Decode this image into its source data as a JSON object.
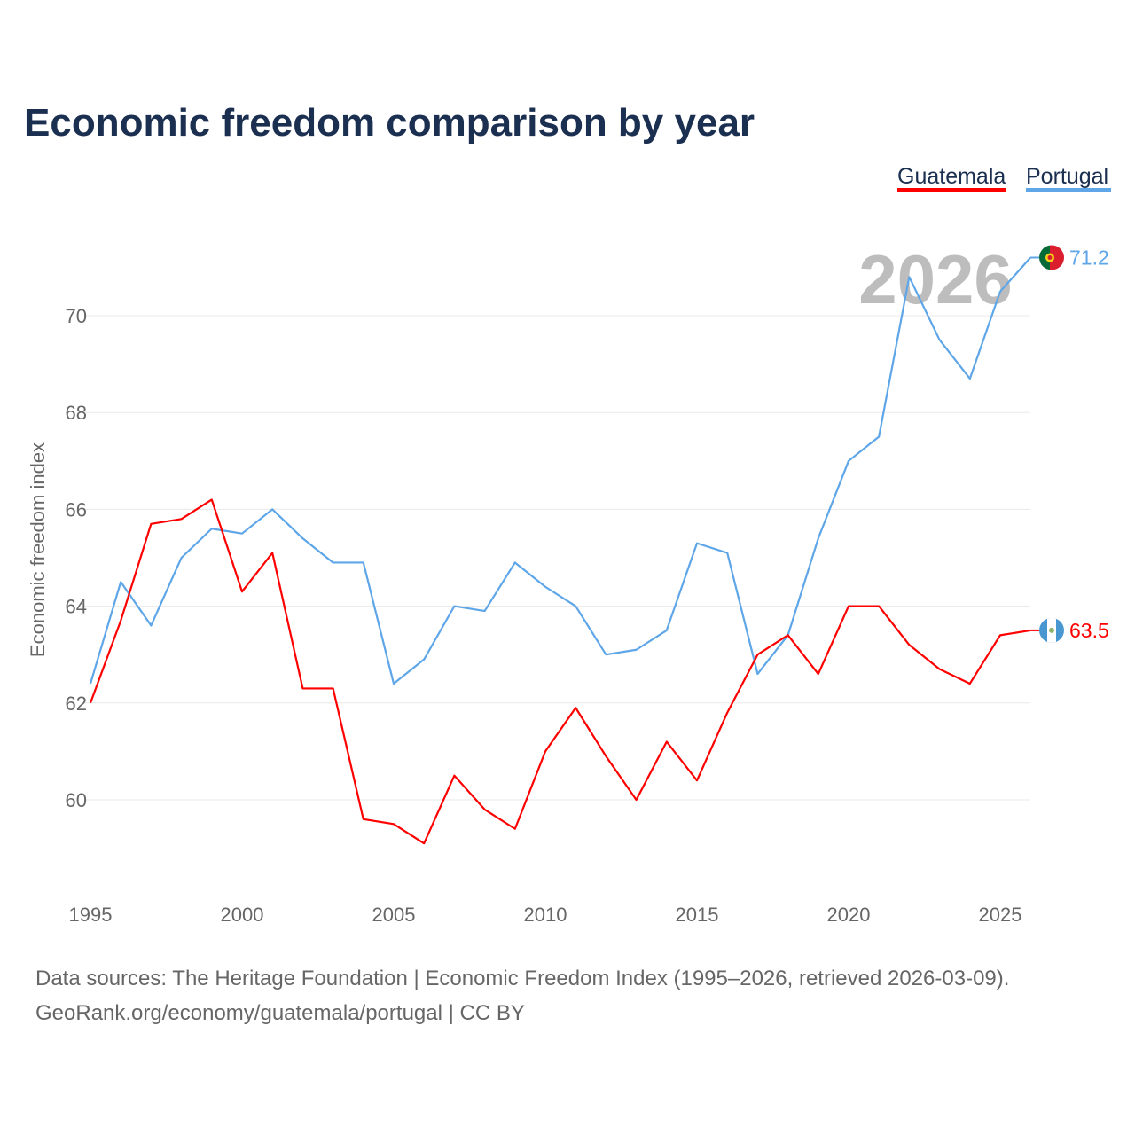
{
  "chart_data": {
    "type": "line",
    "title": "Economic freedom comparison by year",
    "xlabel": "",
    "ylabel": "Economic freedom index",
    "xlim": [
      1995,
      2026
    ],
    "ylim": [
      58,
      72
    ],
    "x_ticks": [
      "1995",
      "2000",
      "2005",
      "2010",
      "2015",
      "2020",
      "2025"
    ],
    "y_ticks": [
      "60",
      "62",
      "64",
      "66",
      "68",
      "70"
    ],
    "grid": true,
    "legend_placement": "top-right",
    "current_year_label": "2026",
    "x": [
      1995,
      1996,
      1997,
      1998,
      1999,
      2000,
      2001,
      2002,
      2003,
      2004,
      2005,
      2006,
      2007,
      2008,
      2009,
      2010,
      2011,
      2012,
      2013,
      2014,
      2015,
      2016,
      2017,
      2018,
      2019,
      2020,
      2021,
      2022,
      2023,
      2024,
      2025,
      2026
    ],
    "series": [
      {
        "name": "Guatemala",
        "color": "#ff0000",
        "end_label": "63.5",
        "values": [
          62.0,
          63.7,
          65.7,
          65.8,
          66.2,
          64.3,
          65.1,
          62.3,
          62.3,
          59.6,
          59.5,
          59.1,
          60.5,
          59.8,
          59.4,
          61.0,
          61.9,
          60.9,
          60.0,
          61.2,
          60.4,
          61.8,
          63.0,
          63.4,
          62.6,
          64.0,
          64.0,
          63.2,
          62.7,
          62.4,
          63.4,
          63.5
        ]
      },
      {
        "name": "Portugal",
        "color": "#5ea6e8",
        "end_label": "71.2",
        "values": [
          62.4,
          64.5,
          63.6,
          65.0,
          65.6,
          65.5,
          66.0,
          65.4,
          64.9,
          64.9,
          62.4,
          62.9,
          64.0,
          63.9,
          64.9,
          64.4,
          64.0,
          63.0,
          63.1,
          63.5,
          65.3,
          65.1,
          62.6,
          63.4,
          65.4,
          67.0,
          67.5,
          70.8,
          69.5,
          68.7,
          70.5,
          71.2
        ]
      }
    ]
  },
  "footer": {
    "line1": "Data sources: The Heritage Foundation | Economic Freedom Index (1995–2026, retrieved 2026-03-09).",
    "line2": "GeoRank.org/economy/guatemala/portugal | CC BY"
  }
}
